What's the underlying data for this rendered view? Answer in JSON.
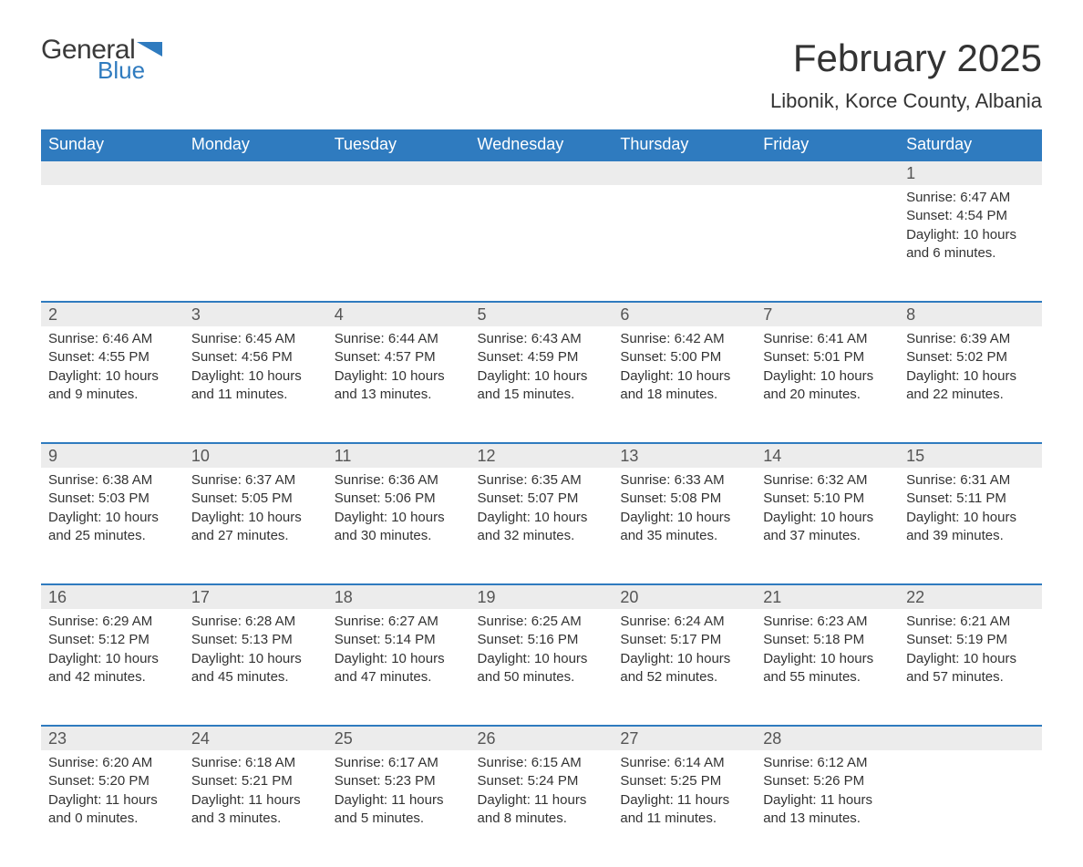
{
  "logo": {
    "word1": "General",
    "word2": "Blue",
    "accent_color": "#2f7bbf"
  },
  "title": "February 2025",
  "location": "Libonik, Korce County, Albania",
  "colors": {
    "header_bg": "#2f7bbf",
    "header_text": "#ffffff",
    "daynum_bg": "#ececec",
    "row_divider": "#2f7bbf",
    "body_text": "#333333"
  },
  "day_headers": [
    "Sunday",
    "Monday",
    "Tuesday",
    "Wednesday",
    "Thursday",
    "Friday",
    "Saturday"
  ],
  "weeks": [
    [
      null,
      null,
      null,
      null,
      null,
      null,
      {
        "d": "1",
        "sunrise": "Sunrise: 6:47 AM",
        "sunset": "Sunset: 4:54 PM",
        "daylight": "Daylight: 10 hours and 6 minutes."
      }
    ],
    [
      {
        "d": "2",
        "sunrise": "Sunrise: 6:46 AM",
        "sunset": "Sunset: 4:55 PM",
        "daylight": "Daylight: 10 hours and 9 minutes."
      },
      {
        "d": "3",
        "sunrise": "Sunrise: 6:45 AM",
        "sunset": "Sunset: 4:56 PM",
        "daylight": "Daylight: 10 hours and 11 minutes."
      },
      {
        "d": "4",
        "sunrise": "Sunrise: 6:44 AM",
        "sunset": "Sunset: 4:57 PM",
        "daylight": "Daylight: 10 hours and 13 minutes."
      },
      {
        "d": "5",
        "sunrise": "Sunrise: 6:43 AM",
        "sunset": "Sunset: 4:59 PM",
        "daylight": "Daylight: 10 hours and 15 minutes."
      },
      {
        "d": "6",
        "sunrise": "Sunrise: 6:42 AM",
        "sunset": "Sunset: 5:00 PM",
        "daylight": "Daylight: 10 hours and 18 minutes."
      },
      {
        "d": "7",
        "sunrise": "Sunrise: 6:41 AM",
        "sunset": "Sunset: 5:01 PM",
        "daylight": "Daylight: 10 hours and 20 minutes."
      },
      {
        "d": "8",
        "sunrise": "Sunrise: 6:39 AM",
        "sunset": "Sunset: 5:02 PM",
        "daylight": "Daylight: 10 hours and 22 minutes."
      }
    ],
    [
      {
        "d": "9",
        "sunrise": "Sunrise: 6:38 AM",
        "sunset": "Sunset: 5:03 PM",
        "daylight": "Daylight: 10 hours and 25 minutes."
      },
      {
        "d": "10",
        "sunrise": "Sunrise: 6:37 AM",
        "sunset": "Sunset: 5:05 PM",
        "daylight": "Daylight: 10 hours and 27 minutes."
      },
      {
        "d": "11",
        "sunrise": "Sunrise: 6:36 AM",
        "sunset": "Sunset: 5:06 PM",
        "daylight": "Daylight: 10 hours and 30 minutes."
      },
      {
        "d": "12",
        "sunrise": "Sunrise: 6:35 AM",
        "sunset": "Sunset: 5:07 PM",
        "daylight": "Daylight: 10 hours and 32 minutes."
      },
      {
        "d": "13",
        "sunrise": "Sunrise: 6:33 AM",
        "sunset": "Sunset: 5:08 PM",
        "daylight": "Daylight: 10 hours and 35 minutes."
      },
      {
        "d": "14",
        "sunrise": "Sunrise: 6:32 AM",
        "sunset": "Sunset: 5:10 PM",
        "daylight": "Daylight: 10 hours and 37 minutes."
      },
      {
        "d": "15",
        "sunrise": "Sunrise: 6:31 AM",
        "sunset": "Sunset: 5:11 PM",
        "daylight": "Daylight: 10 hours and 39 minutes."
      }
    ],
    [
      {
        "d": "16",
        "sunrise": "Sunrise: 6:29 AM",
        "sunset": "Sunset: 5:12 PM",
        "daylight": "Daylight: 10 hours and 42 minutes."
      },
      {
        "d": "17",
        "sunrise": "Sunrise: 6:28 AM",
        "sunset": "Sunset: 5:13 PM",
        "daylight": "Daylight: 10 hours and 45 minutes."
      },
      {
        "d": "18",
        "sunrise": "Sunrise: 6:27 AM",
        "sunset": "Sunset: 5:14 PM",
        "daylight": "Daylight: 10 hours and 47 minutes."
      },
      {
        "d": "19",
        "sunrise": "Sunrise: 6:25 AM",
        "sunset": "Sunset: 5:16 PM",
        "daylight": "Daylight: 10 hours and 50 minutes."
      },
      {
        "d": "20",
        "sunrise": "Sunrise: 6:24 AM",
        "sunset": "Sunset: 5:17 PM",
        "daylight": "Daylight: 10 hours and 52 minutes."
      },
      {
        "d": "21",
        "sunrise": "Sunrise: 6:23 AM",
        "sunset": "Sunset: 5:18 PM",
        "daylight": "Daylight: 10 hours and 55 minutes."
      },
      {
        "d": "22",
        "sunrise": "Sunrise: 6:21 AM",
        "sunset": "Sunset: 5:19 PM",
        "daylight": "Daylight: 10 hours and 57 minutes."
      }
    ],
    [
      {
        "d": "23",
        "sunrise": "Sunrise: 6:20 AM",
        "sunset": "Sunset: 5:20 PM",
        "daylight": "Daylight: 11 hours and 0 minutes."
      },
      {
        "d": "24",
        "sunrise": "Sunrise: 6:18 AM",
        "sunset": "Sunset: 5:21 PM",
        "daylight": "Daylight: 11 hours and 3 minutes."
      },
      {
        "d": "25",
        "sunrise": "Sunrise: 6:17 AM",
        "sunset": "Sunset: 5:23 PM",
        "daylight": "Daylight: 11 hours and 5 minutes."
      },
      {
        "d": "26",
        "sunrise": "Sunrise: 6:15 AM",
        "sunset": "Sunset: 5:24 PM",
        "daylight": "Daylight: 11 hours and 8 minutes."
      },
      {
        "d": "27",
        "sunrise": "Sunrise: 6:14 AM",
        "sunset": "Sunset: 5:25 PM",
        "daylight": "Daylight: 11 hours and 11 minutes."
      },
      {
        "d": "28",
        "sunrise": "Sunrise: 6:12 AM",
        "sunset": "Sunset: 5:26 PM",
        "daylight": "Daylight: 11 hours and 13 minutes."
      },
      null
    ]
  ]
}
